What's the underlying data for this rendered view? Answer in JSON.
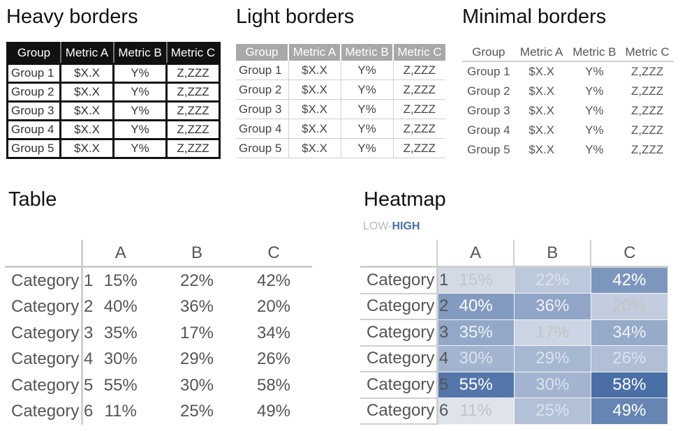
{
  "sections": {
    "heavy": "Heavy borders",
    "light": "Light borders",
    "minimal": "Minimal borders",
    "table": "Table",
    "heatmap": "Heatmap"
  },
  "small_table": {
    "headers": [
      "Group",
      "Metric A",
      "Metric B",
      "Metric C"
    ],
    "rows": [
      [
        "Group 1",
        "$X.X",
        "Y%",
        "Z,ZZZ"
      ],
      [
        "Group 2",
        "$X.X",
        "Y%",
        "Z,ZZZ"
      ],
      [
        "Group 3",
        "$X.X",
        "Y%",
        "Z,ZZZ"
      ],
      [
        "Group 4",
        "$X.X",
        "Y%",
        "Z,ZZZ"
      ],
      [
        "Group 5",
        "$X.X",
        "Y%",
        "Z,ZZZ"
      ]
    ]
  },
  "big_table": {
    "headers": [
      "",
      "A",
      "B",
      "C"
    ],
    "rows": [
      [
        "Category 1",
        "15%",
        "22%",
        "42%"
      ],
      [
        "Category 2",
        "40%",
        "36%",
        "20%"
      ],
      [
        "Category 3",
        "35%",
        "17%",
        "34%"
      ],
      [
        "Category 4",
        "30%",
        "29%",
        "26%"
      ],
      [
        "Category 5",
        "55%",
        "30%",
        "58%"
      ],
      [
        "Category 6",
        "11%",
        "25%",
        "49%"
      ]
    ]
  },
  "heatmap": {
    "legend_low": "LOW-",
    "legend_high": "HIGH",
    "values": [
      [
        15,
        22,
        42
      ],
      [
        40,
        36,
        20
      ],
      [
        35,
        17,
        34
      ],
      [
        30,
        29,
        26
      ],
      [
        55,
        30,
        58
      ],
      [
        11,
        25,
        49
      ]
    ]
  },
  "colors": {
    "heat_high": "#4a6ea6",
    "heat_low": "#ffffff",
    "heavy_header": "#111111",
    "light_header": "#a8a8a8",
    "border_light": "#cfcfcf"
  }
}
